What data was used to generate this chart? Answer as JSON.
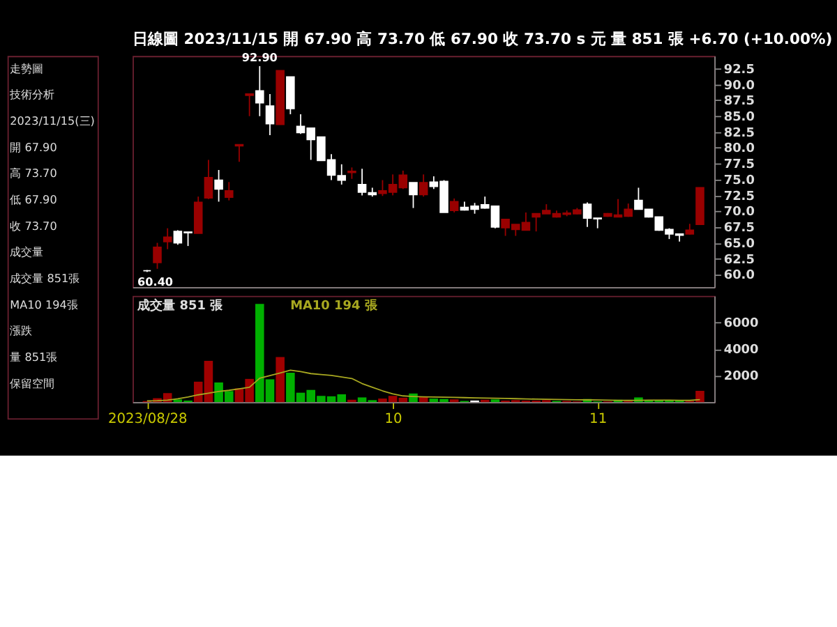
{
  "chart_data": [
    {
      "type": "other",
      "annotations": [
        "走勢圖",
        "技術分析",
        "2023/11/15(三)",
        "開 67.90",
        "高 73.70",
        "低 67.90",
        "收 73.70",
        "成交量",
        "成交量 851張",
        "MA10 194張",
        "漲跌",
        "量 851張",
        "保留空間"
      ]
    },
    {
      "type": "candlestick",
      "title": "日線圖 2023/11/15 開 67.90 高 73.70 低 67.90 收 73.70 s 元 量 851 張 +6.70 (+10.00%)",
      "categories": [
        "2023/08/28",
        null,
        null,
        null,
        null,
        null,
        null,
        null,
        null,
        null,
        null,
        null,
        null,
        null,
        null,
        null,
        null,
        null,
        null,
        null,
        null,
        null,
        null,
        null,
        "10",
        null,
        null,
        null,
        null,
        null,
        null,
        null,
        null,
        null,
        null,
        null,
        null,
        null,
        null,
        null,
        null,
        null,
        null,
        null,
        "11",
        null,
        null,
        null,
        null,
        null,
        null,
        null,
        null,
        null,
        null
      ],
      "ohlc": [
        [
          60.6,
          60.7,
          60.4,
          60.6
        ],
        [
          61.9,
          65.0,
          60.9,
          64.3
        ],
        [
          65.2,
          67.3,
          64.0,
          65.9
        ],
        [
          66.8,
          67.0,
          64.7,
          65.0
        ],
        [
          66.7,
          66.7,
          64.5,
          66.6
        ],
        [
          66.5,
          72.3,
          66.5,
          71.4
        ],
        [
          72.1,
          78.1,
          71.9,
          75.3
        ],
        [
          74.9,
          76.5,
          71.5,
          73.5
        ],
        [
          72.2,
          74.6,
          71.7,
          73.2
        ],
        [
          80.3,
          80.5,
          77.8,
          80.5
        ],
        [
          88.3,
          88.5,
          85.0,
          88.5
        ],
        [
          89.0,
          92.9,
          85.0,
          87.1
        ],
        [
          86.6,
          88.5,
          82.0,
          83.8
        ],
        [
          83.7,
          92.2,
          83.7,
          92.2
        ],
        [
          91.2,
          91.2,
          85.3,
          86.2
        ],
        [
          83.4,
          85.3,
          82.2,
          82.4
        ],
        [
          83.1,
          83.1,
          78.1,
          81.3
        ],
        [
          81.7,
          81.7,
          78.0,
          78.0
        ],
        [
          78.1,
          79.0,
          74.9,
          75.7
        ],
        [
          75.6,
          77.4,
          74.2,
          74.9
        ],
        [
          76.1,
          76.9,
          75.1,
          76.3
        ],
        [
          74.2,
          76.7,
          72.5,
          73.0
        ],
        [
          72.9,
          73.7,
          72.3,
          72.6
        ],
        [
          72.8,
          74.9,
          72.4,
          73.2
        ],
        [
          73.0,
          75.8,
          72.5,
          74.2
        ],
        [
          73.7,
          76.4,
          73.5,
          75.7
        ],
        [
          74.5,
          74.5,
          70.5,
          72.6
        ],
        [
          72.6,
          75.8,
          72.3,
          74.5
        ],
        [
          74.6,
          75.5,
          73.5,
          73.9
        ],
        [
          74.7,
          74.9,
          69.8,
          69.8
        ],
        [
          70.1,
          72.0,
          69.8,
          71.5
        ],
        [
          70.6,
          71.5,
          70.1,
          70.2
        ],
        [
          70.8,
          71.3,
          69.6,
          70.3
        ],
        [
          71.0,
          72.3,
          70.4,
          70.5
        ],
        [
          70.8,
          70.8,
          67.3,
          67.5
        ],
        [
          67.4,
          68.7,
          66.1,
          68.7
        ],
        [
          67.1,
          67.9,
          66.1,
          67.9
        ],
        [
          67.0,
          69.8,
          67.0,
          68.2
        ],
        [
          69.1,
          69.6,
          66.8,
          69.6
        ],
        [
          69.6,
          71.1,
          69.6,
          70.1
        ],
        [
          69.1,
          70.1,
          69.0,
          69.6
        ],
        [
          69.5,
          70.1,
          69.2,
          69.7
        ],
        [
          69.6,
          70.5,
          69.5,
          70.2
        ],
        [
          71.1,
          71.4,
          67.5,
          68.9
        ],
        [
          68.9,
          68.9,
          67.3,
          68.8
        ],
        [
          69.2,
          69.7,
          69.1,
          69.6
        ],
        [
          69.1,
          71.9,
          69.1,
          69.4
        ],
        [
          69.2,
          71.2,
          69.1,
          70.3
        ],
        [
          71.7,
          73.7,
          70.3,
          70.3
        ],
        [
          70.3,
          70.3,
          69.0,
          69.1
        ],
        [
          69.1,
          69.1,
          66.9,
          67.0
        ],
        [
          67.1,
          67.3,
          65.6,
          66.4
        ],
        [
          66.4,
          66.4,
          65.2,
          66.2
        ],
        [
          66.4,
          68.0,
          66.3,
          67.0
        ],
        [
          67.9,
          73.7,
          67.9,
          73.7
        ]
      ],
      "colors": [
        "#ffffff",
        "#990000",
        "#990000",
        "#ffffff",
        "#ffffff",
        "#990000",
        "#990000",
        "#ffffff",
        "#990000",
        "#990000",
        "#990000",
        "#ffffff",
        "#ffffff",
        "#990000",
        "#ffffff",
        "#ffffff",
        "#ffffff",
        "#ffffff",
        "#ffffff",
        "#ffffff",
        "#990000",
        "#ffffff",
        "#ffffff",
        "#990000",
        "#990000",
        "#990000",
        "#ffffff",
        "#990000",
        "#ffffff",
        "#ffffff",
        "#990000",
        "#ffffff",
        "#ffffff",
        "#ffffff",
        "#ffffff",
        "#990000",
        "#990000",
        "#990000",
        "#990000",
        "#990000",
        "#990000",
        "#990000",
        "#990000",
        "#ffffff",
        "#ffffff",
        "#990000",
        "#990000",
        "#990000",
        "#ffffff",
        "#ffffff",
        "#ffffff",
        "#ffffff",
        "#ffffff",
        "#990000",
        "#990000"
      ],
      "ylim": [
        58.0,
        94.5
      ],
      "yticks": [
        {
          "value": 60,
          "label": "60.0"
        },
        {
          "value": 62.5,
          "label": "62.5"
        },
        {
          "value": 65,
          "label": "65.0"
        },
        {
          "value": 67.5,
          "label": "67.5"
        },
        {
          "value": 70,
          "label": "70.0"
        },
        {
          "value": 72.5,
          "label": "72.5"
        },
        {
          "value": 75,
          "label": "75.0"
        },
        {
          "value": 77.5,
          "label": "77.5"
        },
        {
          "value": 80,
          "label": "80.0"
        },
        {
          "value": 82.5,
          "label": "82.5"
        },
        {
          "value": 85,
          "label": "85.0"
        },
        {
          "value": 87.5,
          "label": "87.5"
        },
        {
          "value": 90,
          "label": "90.0"
        },
        {
          "value": 92.5,
          "label": "92.5"
        }
      ],
      "annotations": [
        {
          "text": "92.90",
          "y": 92.9
        },
        {
          "text": "60.40",
          "y": 60.4
        }
      ],
      "tick_labels": "y",
      "grid": false
    },
    {
      "type": "bar",
      "categories": [
        "2023/08/28",
        null,
        null,
        null,
        null,
        null,
        null,
        null,
        null,
        null,
        null,
        null,
        null,
        null,
        null,
        null,
        null,
        null,
        null,
        null,
        null,
        null,
        null,
        null,
        "10",
        null,
        null,
        null,
        null,
        null,
        null,
        null,
        null,
        null,
        null,
        null,
        null,
        null,
        null,
        null,
        null,
        null,
        null,
        null,
        "11",
        null,
        null,
        null,
        null,
        null,
        null,
        null,
        null,
        null,
        null
      ],
      "series": [
        {
          "type": "bar",
          "values": [
            80,
            296,
            680,
            207,
            118,
            1540,
            3110,
            1480,
            830,
            1040,
            1750,
            7400,
            1720,
            3400,
            2220,
            710,
            920,
            470,
            440,
            590,
            180,
            355,
            150,
            270,
            470,
            330,
            650,
            415,
            266,
            237,
            207,
            90,
            120,
            180,
            207,
            118,
            150,
            118,
            118,
            150,
            90,
            90,
            60,
            237,
            60,
            60,
            178,
            90,
            355,
            118,
            118,
            118,
            118,
            90,
            851
          ],
          "colors": [
            "#a00000",
            "#a00000",
            "#a00000",
            "#00b000",
            "#00b000",
            "#a00000",
            "#a00000",
            "#00b000",
            "#00b000",
            "#a00000",
            "#a00000",
            "#00b000",
            "#00b000",
            "#a00000",
            "#00b000",
            "#00b000",
            "#00b000",
            "#00b000",
            "#00b000",
            "#00b000",
            "#a00000",
            "#00b000",
            "#00b000",
            "#a00000",
            "#a00000",
            "#a00000",
            "#00b000",
            "#a00000",
            "#00b000",
            "#00b000",
            "#a00000",
            "#00b000",
            "#ffffff",
            "#a00000",
            "#00b000",
            "#a00000",
            "#a00000",
            "#a00000",
            "#a00000",
            "#a00000",
            "#00b000",
            "#a00000",
            "#a00000",
            "#00b000",
            "#00b000",
            "#a00000",
            "#00b000",
            "#a00000",
            "#00b000",
            "#00b000",
            "#00b000",
            "#00b000",
            "#00b000",
            "#a00000",
            "#a00000"
          ]
        },
        {
          "type": "line",
          "name": "MA10 194 張",
          "color": "#a8a820",
          "values": [
            90,
            110,
            150,
            250,
            385,
            550,
            680,
            800,
            890,
            1000,
            1120,
            1800,
            2000,
            2200,
            2400,
            2300,
            2150,
            2080,
            2010,
            1900,
            1780,
            1400,
            1120,
            850,
            620,
            470,
            430,
            400,
            385,
            370,
            355,
            340,
            325,
            310,
            296,
            280,
            260,
            240,
            230,
            220,
            200,
            190,
            180,
            170,
            160,
            150,
            140,
            130,
            140,
            150,
            150,
            150,
            140,
            130,
            194
          ]
        }
      ],
      "annotations": [
        "成交量 851 張"
      ],
      "ylim": [
        0,
        8000
      ],
      "yticks": [
        2000,
        4000,
        6000
      ],
      "grid": false
    }
  ]
}
